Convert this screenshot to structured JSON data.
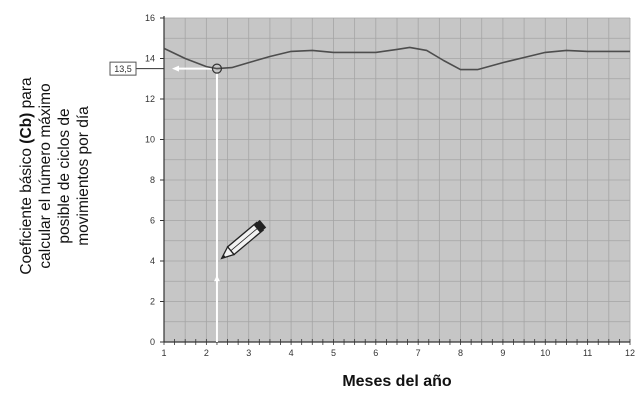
{
  "chart_data": {
    "type": "line",
    "title": "",
    "ylabel_parts": [
      "Coeficiente básico ",
      "(Cb)",
      " para",
      "calcular el número máximo",
      "posible de ciclos de",
      "movimientos por día"
    ],
    "xlabel": "Meses del año",
    "xlim": [
      1,
      12
    ],
    "ylim": [
      0,
      16
    ],
    "x_ticks": [
      "1",
      "2",
      "3",
      "4",
      "5",
      "6",
      "7",
      "8",
      "9",
      "10",
      "11",
      "12"
    ],
    "y_ticks": [
      "0",
      "2",
      "4",
      "6",
      "8",
      "10",
      "12",
      "14",
      "16"
    ],
    "grid": true,
    "series": [
      {
        "x": [
          1,
          1.5,
          2.0,
          2.25,
          2.6,
          3,
          3.5,
          4,
          4.5,
          5,
          5.5,
          6,
          6.5,
          6.8,
          7.2,
          7.6,
          8,
          8.4,
          9,
          9.5,
          10,
          10.5,
          11,
          11.5,
          12
        ],
        "y": [
          14.5,
          14.0,
          13.6,
          13.5,
          13.55,
          13.8,
          14.1,
          14.35,
          14.4,
          14.3,
          14.3,
          14.3,
          14.45,
          14.55,
          14.4,
          13.9,
          13.45,
          13.45,
          13.8,
          14.05,
          14.3,
          14.4,
          14.35,
          14.35,
          14.35
        ]
      }
    ],
    "marker": {
      "x": 2.25,
      "y": 13.5,
      "label": "13,5"
    },
    "colors": {
      "plot_bg": "#c6c6c6",
      "grid": "#a5a5a5",
      "line": "#4d4d4d",
      "guide": "#ffffff"
    }
  }
}
